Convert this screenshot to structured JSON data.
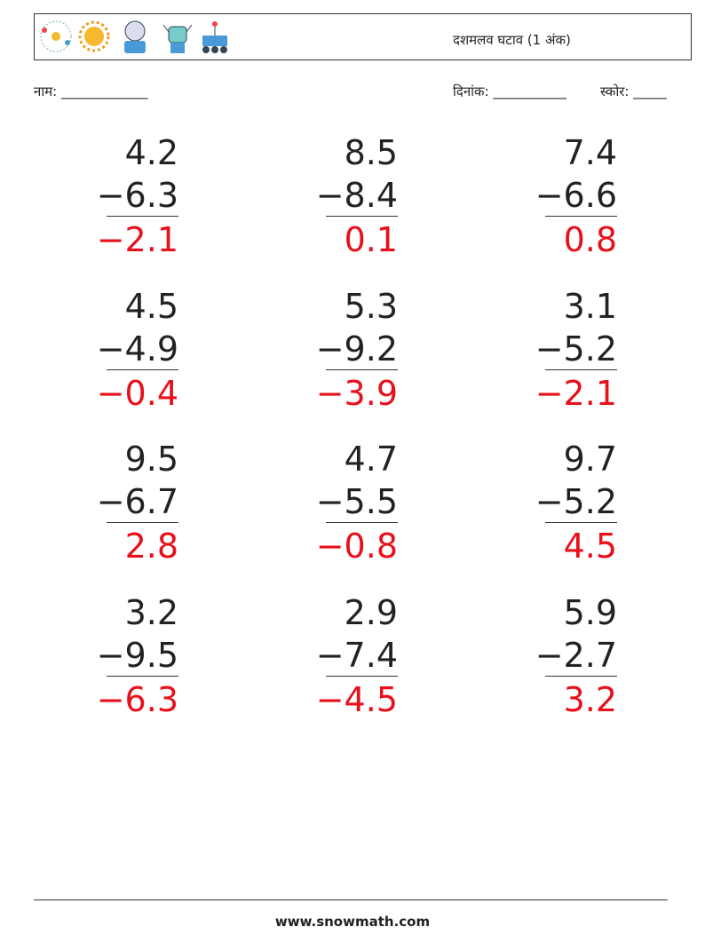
{
  "header": {
    "title": "दशमलव घटाव (1 अंक)"
  },
  "fields": {
    "name": "नाम: _____________",
    "date": "दिनांक: ___________",
    "score": "स्कोर: _____"
  },
  "problems": [
    {
      "top": "4.2",
      "bottom": "−6.3",
      "answer": "−2.1"
    },
    {
      "top": "8.5",
      "bottom": "−8.4",
      "answer": "0.1"
    },
    {
      "top": "7.4",
      "bottom": "−6.6",
      "answer": "0.8"
    },
    {
      "top": "4.5",
      "bottom": "−4.9",
      "answer": "−0.4"
    },
    {
      "top": "5.3",
      "bottom": "−9.2",
      "answer": "−3.9"
    },
    {
      "top": "3.1",
      "bottom": "−5.2",
      "answer": "−2.1"
    },
    {
      "top": "9.5",
      "bottom": "−6.7",
      "answer": "2.8"
    },
    {
      "top": "4.7",
      "bottom": "−5.5",
      "answer": "−0.8"
    },
    {
      "top": "9.7",
      "bottom": "−5.2",
      "answer": "4.5"
    },
    {
      "top": "3.2",
      "bottom": "−9.5",
      "answer": "−6.3"
    },
    {
      "top": "2.9",
      "bottom": "−7.4",
      "answer": "−4.5"
    },
    {
      "top": "5.9",
      "bottom": "−2.7",
      "answer": "3.2"
    }
  ],
  "footer": {
    "url": "www.snowmath.com"
  }
}
